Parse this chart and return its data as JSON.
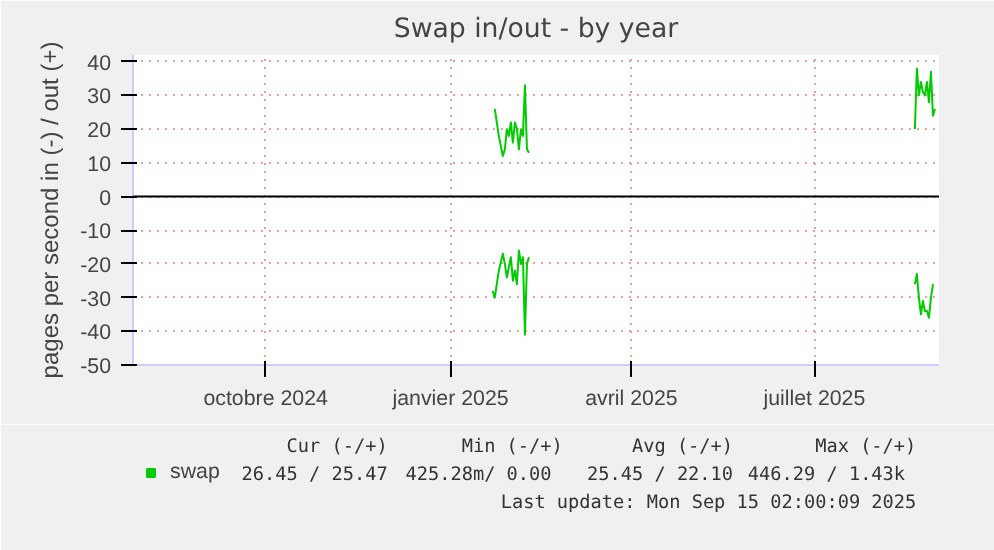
{
  "chart_data": {
    "type": "line",
    "title": "Swap in/out - by year",
    "ylabel": "pages per second in (-) / out (+)",
    "x": [
      "2025-02-05",
      "2025-02-06",
      "2025-02-08",
      "2025-02-10",
      "2025-02-11",
      "2025-02-12",
      "2025-02-13",
      "2025-02-14",
      "2025-02-15",
      "2025-02-16",
      "2025-02-17",
      "2025-02-18",
      "2025-02-19",
      "2025-02-20",
      "2025-02-21",
      "2025-02-22",
      "2025-02-23",
      "2025-06-01",
      "2025-09-03",
      "2025-09-04",
      "2025-09-05",
      "2025-09-06",
      "2025-09-07",
      "2025-09-08",
      "2025-09-09",
      "2025-09-10",
      "2025-09-11",
      "2025-09-12",
      "2025-09-13"
    ],
    "series": [
      {
        "name": "swap",
        "color": "#00cc00",
        "values": [
          null,
          26,
          18,
          12,
          14,
          20,
          18,
          22,
          16,
          22,
          20,
          14,
          20,
          18,
          33,
          14,
          13,
          null,
          20,
          38,
          30,
          34,
          31,
          30,
          34,
          28,
          37,
          24,
          26
        ]
      },
      {
        "color": "#00cc00",
        "values": [
          -28,
          -30,
          -22,
          -17,
          -20,
          -24,
          -21,
          -18,
          -25,
          -22,
          -26,
          -16,
          -20,
          -18,
          -41,
          -20,
          -18,
          null,
          -26,
          -23,
          -30,
          -35,
          -31,
          -34,
          -34,
          -36,
          -30,
          -26,
          null
        ]
      }
    ],
    "xlim": [
      "2024-08-10",
      "2025-09-15"
    ],
    "xticks": [
      {
        "value": "2024-10-15",
        "label": "octobre 2024"
      },
      {
        "value": "2025-01-15",
        "label": "janvier 2025"
      },
      {
        "value": "2025-04-15",
        "label": "avril 2025"
      },
      {
        "value": "2025-07-15",
        "label": "juillet 2025"
      }
    ],
    "ylim": [
      -50,
      42
    ],
    "yticks": [
      -50,
      -40,
      -30,
      -20,
      -10,
      0,
      10,
      20,
      30,
      40
    ],
    "ref_lines": [
      {
        "axis": "y",
        "value": 0,
        "color": "#000000"
      }
    ],
    "grid": true,
    "legend": "bottom",
    "marker": "none",
    "line_style": "solid",
    "annotations": [
      "Cur (-/+)",
      "Min (-/+)",
      "Avg (-/+)",
      "Max (-/+)",
      "26.45 / 25.47",
      "425.28m/  0.00",
      "25.45 / 22.10",
      "446.29 /  1.43k",
      "Last update: Mon Sep 15 02:00:09 2025"
    ]
  }
}
